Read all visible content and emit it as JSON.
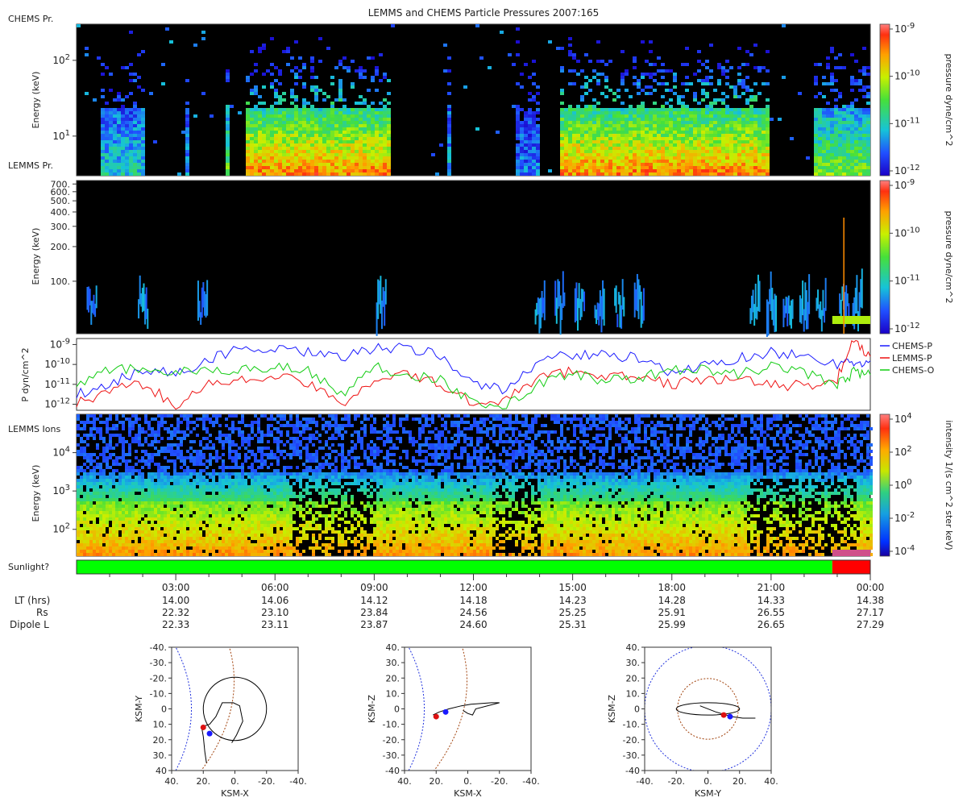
{
  "title": "LEMMS and CHEMS Particle Pressures  2007:165",
  "chart_data": [
    {
      "id": "chems_pressure",
      "type": "heatmap",
      "panel_label": "CHEMS Pr.",
      "ylabel": "Energy (keV)",
      "yscale": "log",
      "ylim": [
        3,
        300
      ],
      "y_ticks": [
        {
          "v": 10,
          "label": "10^1"
        },
        {
          "v": 100,
          "label": "10^2"
        }
      ],
      "colorbar": {
        "label": "pressure dyne/cm^2",
        "scale": "log",
        "range": [
          1e-12,
          1e-09
        ],
        "ticks": [
          "10^-9",
          "10^-10",
          "10^-11",
          "10^-12"
        ]
      },
      "active_bands": [
        {
          "x": [
            0.7,
            2.0
          ],
          "level": 0.35
        },
        {
          "x": [
            3.2,
            3.4
          ],
          "level": 0.25
        },
        {
          "x": [
            4.4,
            4.6
          ],
          "level": 0.55
        },
        {
          "x": [
            5.0,
            9.5
          ],
          "level": 0.85
        },
        {
          "x": [
            11.1,
            11.3
          ],
          "level": 0.3
        },
        {
          "x": [
            13.2,
            14.0
          ],
          "level": 0.2
        },
        {
          "x": [
            14.5,
            20.9
          ],
          "level": 0.85
        },
        {
          "x": [
            22.2,
            24.0
          ],
          "level": 0.55
        }
      ]
    },
    {
      "id": "lemms_pressure",
      "type": "heatmap",
      "panel_label": "LEMMS Pr.",
      "ylabel": "Energy (keV)",
      "yscale": "log",
      "ylim": [
        35,
        750
      ],
      "y_ticks": [
        {
          "v": 100,
          "label": "100."
        },
        {
          "v": 200,
          "label": "200."
        },
        {
          "v": 300,
          "label": "300."
        },
        {
          "v": 400,
          "label": "400."
        },
        {
          "v": 500,
          "label": "500."
        },
        {
          "v": 600,
          "label": "600."
        },
        {
          "v": 700,
          "label": "700."
        }
      ],
      "colorbar": {
        "label": "pressure dyne/cm^2",
        "scale": "log",
        "range": [
          1e-12,
          1e-09
        ],
        "ticks": [
          "10^-9",
          "10^-10",
          "10^-11",
          "10^-12"
        ]
      },
      "bursts": [
        0.45,
        2.0,
        3.8,
        9.2,
        14.0,
        14.6,
        15.2,
        15.8,
        16.4,
        17.0,
        20.5,
        21.0,
        21.5,
        22.0,
        22.5,
        23.2,
        23.6
      ]
    },
    {
      "id": "pressures",
      "type": "line",
      "ylabel": "P dyn/cm^2",
      "yscale": "log",
      "ylim": [
        5e-13,
        2e-09
      ],
      "y_ticks": [
        {
          "v": 1e-09,
          "label": "10^-9"
        },
        {
          "v": 1e-10,
          "label": "10^-10"
        },
        {
          "v": 1e-11,
          "label": "10^-11"
        },
        {
          "v": 1e-12,
          "label": "10^-12"
        }
      ],
      "x": [
        0,
        1,
        2,
        3,
        4,
        5,
        6,
        7,
        8,
        9,
        10,
        11,
        12,
        13,
        14,
        15,
        16,
        17,
        18,
        19,
        20,
        21,
        22,
        23,
        23.5,
        24
      ],
      "series": [
        {
          "name": "CHEMS-P",
          "color": "#1a1aff",
          "values": [
            3e-12,
            1e-11,
            6e-11,
            3e-11,
            2e-10,
            6e-10,
            5e-10,
            4e-10,
            2e-10,
            7e-10,
            6e-10,
            3e-10,
            1e-11,
            5e-12,
            2e-10,
            3e-10,
            3e-10,
            2e-10,
            3e-11,
            1e-10,
            2e-10,
            4e-10,
            3e-10,
            1e-10,
            1e-10,
            1.5e-10
          ]
        },
        {
          "name": "LEMMS-P",
          "color": "#ee1111",
          "values": [
            1e-12,
            5e-12,
            1e-11,
            1e-12,
            1e-11,
            1.5e-11,
            3e-11,
            1e-11,
            1e-12,
            2e-11,
            3e-11,
            1e-11,
            1e-12,
            2e-12,
            2e-11,
            5e-11,
            3e-11,
            2e-11,
            1e-11,
            2e-11,
            1.5e-11,
            1e-11,
            8e-12,
            2e-11,
            1.5e-09,
            2.5e-10
          ]
        },
        {
          "name": "CHEMS-O",
          "color": "#11cc11",
          "values": [
            1e-11,
            5e-11,
            6e-11,
            4e-11,
            4e-11,
            6e-11,
            8e-11,
            5e-11,
            3e-12,
            8e-11,
            3e-11,
            2e-11,
            1e-12,
            1e-12,
            1e-11,
            4e-11,
            1.5e-11,
            2e-11,
            6e-11,
            5e-11,
            3e-11,
            8e-11,
            4e-11,
            1e-11,
            4e-11,
            3e-11
          ]
        }
      ]
    },
    {
      "id": "lemms_ions",
      "type": "heatmap",
      "panel_label": "LEMMS Ions",
      "ylabel": "Energy (keV)",
      "yscale": "log",
      "ylim": [
        20,
        100000
      ],
      "y_ticks": [
        {
          "v": 100,
          "label": "10^2"
        },
        {
          "v": 1000,
          "label": "10^3"
        },
        {
          "v": 10000,
          "label": "10^4"
        }
      ],
      "colorbar": {
        "label": "intensity 1/(s cm^2 ster keV)",
        "scale": "log",
        "range": [
          1e-05,
          10000.0
        ],
        "ticks": [
          "10^4",
          "10^2",
          "10^0",
          "10^-2",
          "10^-4"
        ]
      },
      "low_energy_dropouts": [
        [
          6.5,
          9.0
        ],
        [
          12.5,
          14.0
        ],
        [
          20.2,
          23.5
        ]
      ]
    },
    {
      "id": "sunlight",
      "type": "bar",
      "label": "Sunlight?",
      "segments": [
        {
          "x": [
            0,
            22.85
          ],
          "state": "yes",
          "color": "#00ff00"
        },
        {
          "x": [
            22.85,
            24
          ],
          "state": "no",
          "color": "#ff0000"
        }
      ]
    },
    {
      "id": "orbit_xy",
      "type": "scatter",
      "xlabel": "KSM-X",
      "ylabel": "KSM-Y",
      "xlim": [
        40,
        -40
      ],
      "ylim": [
        -40,
        40
      ],
      "x_ticks": [
        "40.",
        "20.",
        "0.",
        "-20.",
        "-40."
      ],
      "y_ticks": [
        "-40.",
        "-30.",
        "-20.",
        "-10.",
        "0",
        "10.",
        "20.",
        "30.",
        "40"
      ],
      "trajectory": [
        [
          18,
          35
        ],
        [
          19,
          28
        ],
        [
          20,
          18
        ],
        [
          21,
          12
        ],
        [
          19,
          11
        ],
        [
          16,
          10
        ],
        [
          12,
          5
        ],
        [
          8,
          -4
        ],
        [
          1,
          -4
        ],
        [
          -3,
          -2
        ],
        [
          -5,
          8
        ],
        [
          -1,
          17
        ],
        [
          2,
          22
        ]
      ],
      "moon_orbit_radius": 20,
      "ship_positions": [
        [
          20,
          12
        ],
        [
          16,
          16
        ]
      ]
    },
    {
      "id": "orbit_xz",
      "type": "scatter",
      "xlabel": "KSM-X",
      "ylabel": "KSM-Z",
      "xlim": [
        40,
        -40
      ],
      "ylim": [
        -40,
        40
      ],
      "x_ticks": [
        "40.",
        "20.",
        "0.",
        "-20.",
        "-40."
      ],
      "y_ticks": [
        "40.",
        "30.",
        "20.",
        "10.",
        "0",
        "-10.",
        "-20.",
        "-30.",
        "-40"
      ],
      "trajectory": [
        [
          22,
          4
        ],
        [
          18,
          2
        ],
        [
          12,
          0
        ],
        [
          4,
          -2
        ],
        [
          -2,
          -3
        ],
        [
          -15,
          -4
        ],
        [
          -20,
          -4
        ],
        [
          -5,
          0
        ],
        [
          -3,
          4
        ],
        [
          0,
          3
        ],
        [
          3,
          1
        ]
      ],
      "ship_positions": [
        [
          20,
          5
        ],
        [
          14,
          2
        ]
      ]
    },
    {
      "id": "orbit_yz",
      "type": "scatter",
      "xlabel": "KSM-Y",
      "ylabel": "KSM-Z",
      "xlim": [
        -40,
        40
      ],
      "ylim": [
        -40,
        40
      ],
      "x_ticks": [
        "-40.",
        "-20.",
        "0.",
        "20.",
        "40."
      ],
      "y_ticks": [
        "40.",
        "30.",
        "20.",
        "10.",
        "0",
        "-10.",
        "-20.",
        "-30.",
        "-40"
      ],
      "trajectory": [
        [
          -5,
          -2
        ],
        [
          5,
          2
        ],
        [
          15,
          5
        ],
        [
          22,
          6
        ],
        [
          30,
          6
        ]
      ],
      "orbit_ellipse": {
        "cx": 0,
        "cy": 0,
        "rx": 20,
        "ry": 4
      },
      "ship_positions": [
        [
          10,
          4
        ],
        [
          14,
          5
        ]
      ]
    }
  ],
  "time_axis": {
    "ticks": [
      {
        "t": 3,
        "label": "03:00",
        "lt": "14.00",
        "rs": "22.32",
        "l": "22.33"
      },
      {
        "t": 6,
        "label": "06:00",
        "lt": "14.06",
        "rs": "23.10",
        "l": "23.11"
      },
      {
        "t": 9,
        "label": "09:00",
        "lt": "14.12",
        "rs": "23.84",
        "l": "23.87"
      },
      {
        "t": 12,
        "label": "12:00",
        "lt": "14.18",
        "rs": "24.56",
        "l": "24.60"
      },
      {
        "t": 15,
        "label": "15:00",
        "lt": "14.23",
        "rs": "25.25",
        "l": "25.31"
      },
      {
        "t": 18,
        "label": "18:00",
        "lt": "14.28",
        "rs": "25.91",
        "l": "25.99"
      },
      {
        "t": 21,
        "label": "21:00",
        "lt": "14.33",
        "rs": "26.55",
        "l": "26.65"
      },
      {
        "t": 24,
        "label": "00:00",
        "lt": "14.38",
        "rs": "27.17",
        "l": "27.29"
      }
    ],
    "row_labels": {
      "lt": "LT (hrs)",
      "rs": "Rs",
      "l": "Dipole L"
    }
  }
}
